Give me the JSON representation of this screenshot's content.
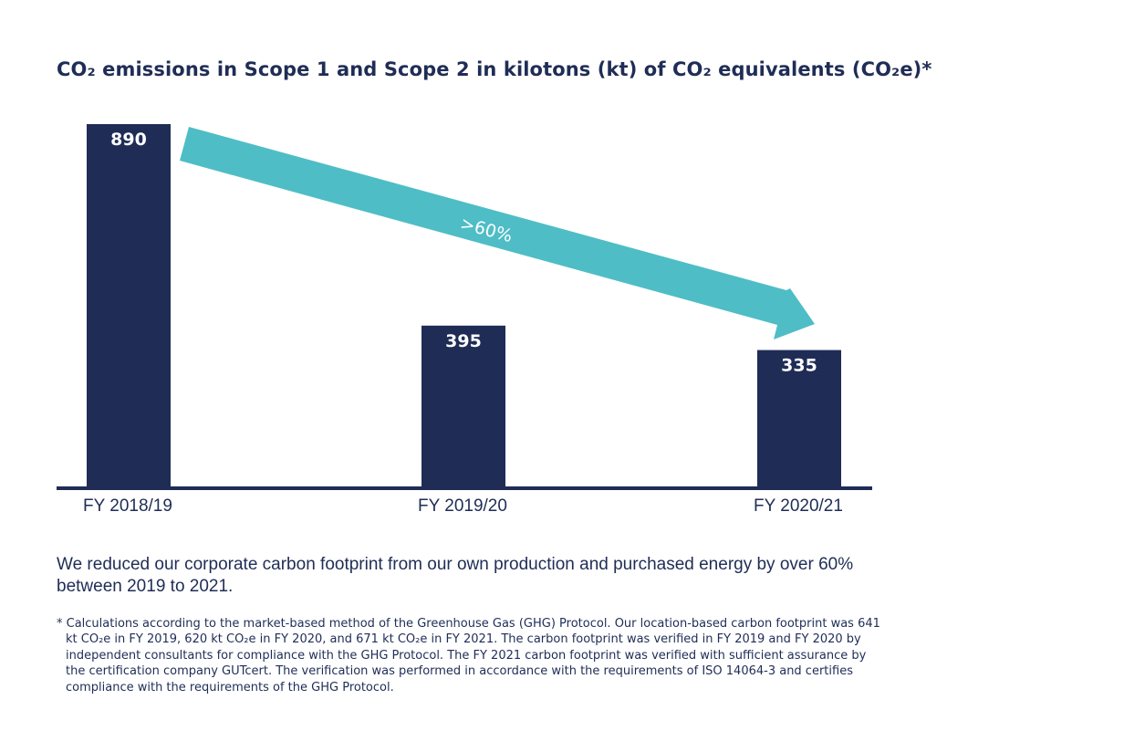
{
  "chart_data": {
    "type": "bar",
    "title": "CO₂ emissions in Scope 1 and Scope 2 in kilotons (kt) of CO₂ equivalents (CO₂e)*",
    "categories": [
      "FY 2018/19",
      "FY 2019/20",
      "FY 2020/21"
    ],
    "values": [
      890,
      395,
      335
    ],
    "value_labels": [
      "890",
      "395",
      "335"
    ],
    "xlabel": "",
    "ylabel": "",
    "ylim": [
      0,
      890
    ],
    "grid": false,
    "legend": "none",
    "bar_color": "#1f2d56",
    "annotation": {
      "type": "arrow",
      "label": ">60%",
      "from_category": "FY 2018/19",
      "to_category": "FY 2020/21",
      "color": "#4fbdc6"
    }
  },
  "summary_text": "We reduced our corporate carbon footprint from our own production and purchased energy by over 60% between 2019 to 2021.",
  "footnote": "* Calculations according to the market-based method of the Greenhouse Gas (GHG) Protocol. Our location-based carbon footprint was 641 kt CO₂e in FY 2019, 620 kt CO₂e in FY 2020, and 671 kt CO₂e in FY 2021. The carbon footprint was verified in FY 2019 and FY 2020 by independent consultants for compliance with the GHG Protocol. The FY 2021 carbon footprint was verified with sufficient assurance by the certification company GUTcert. The verification was performed in accordance with the requirements of ISO 14064-3 and certifies compliance with the requirements of the GHG Protocol."
}
